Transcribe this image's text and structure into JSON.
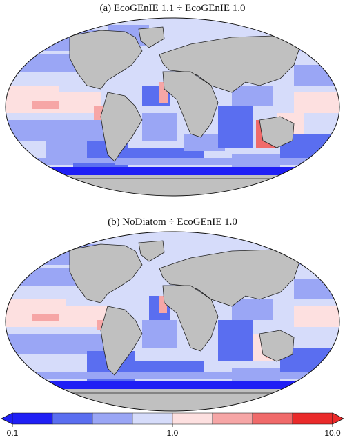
{
  "panels": [
    {
      "id": "a",
      "title": "(a) EcoGEnIE 1.1 ÷ EcoGEnIE 1.0"
    },
    {
      "id": "b",
      "title": "(b) NoDiatom ÷ EcoGEnIE 1.0"
    }
  ],
  "colorbar": {
    "scale": "log",
    "range": [
      0.1,
      10.0
    ],
    "tick_labels": [
      "0.1",
      "1.0",
      "10.0"
    ],
    "colors": [
      "#1f1ff5",
      "#5a6ef0",
      "#9aa6f5",
      "#d6dcfa",
      "#fde0e0",
      "#f6a6a6",
      "#f06a6a",
      "#ea2a2a"
    ],
    "under_color": "#1f1ff5",
    "over_color": "#ea2a2a"
  },
  "land_color": "#c0c0c0",
  "ocean_base_color": "#d6dcfa"
}
